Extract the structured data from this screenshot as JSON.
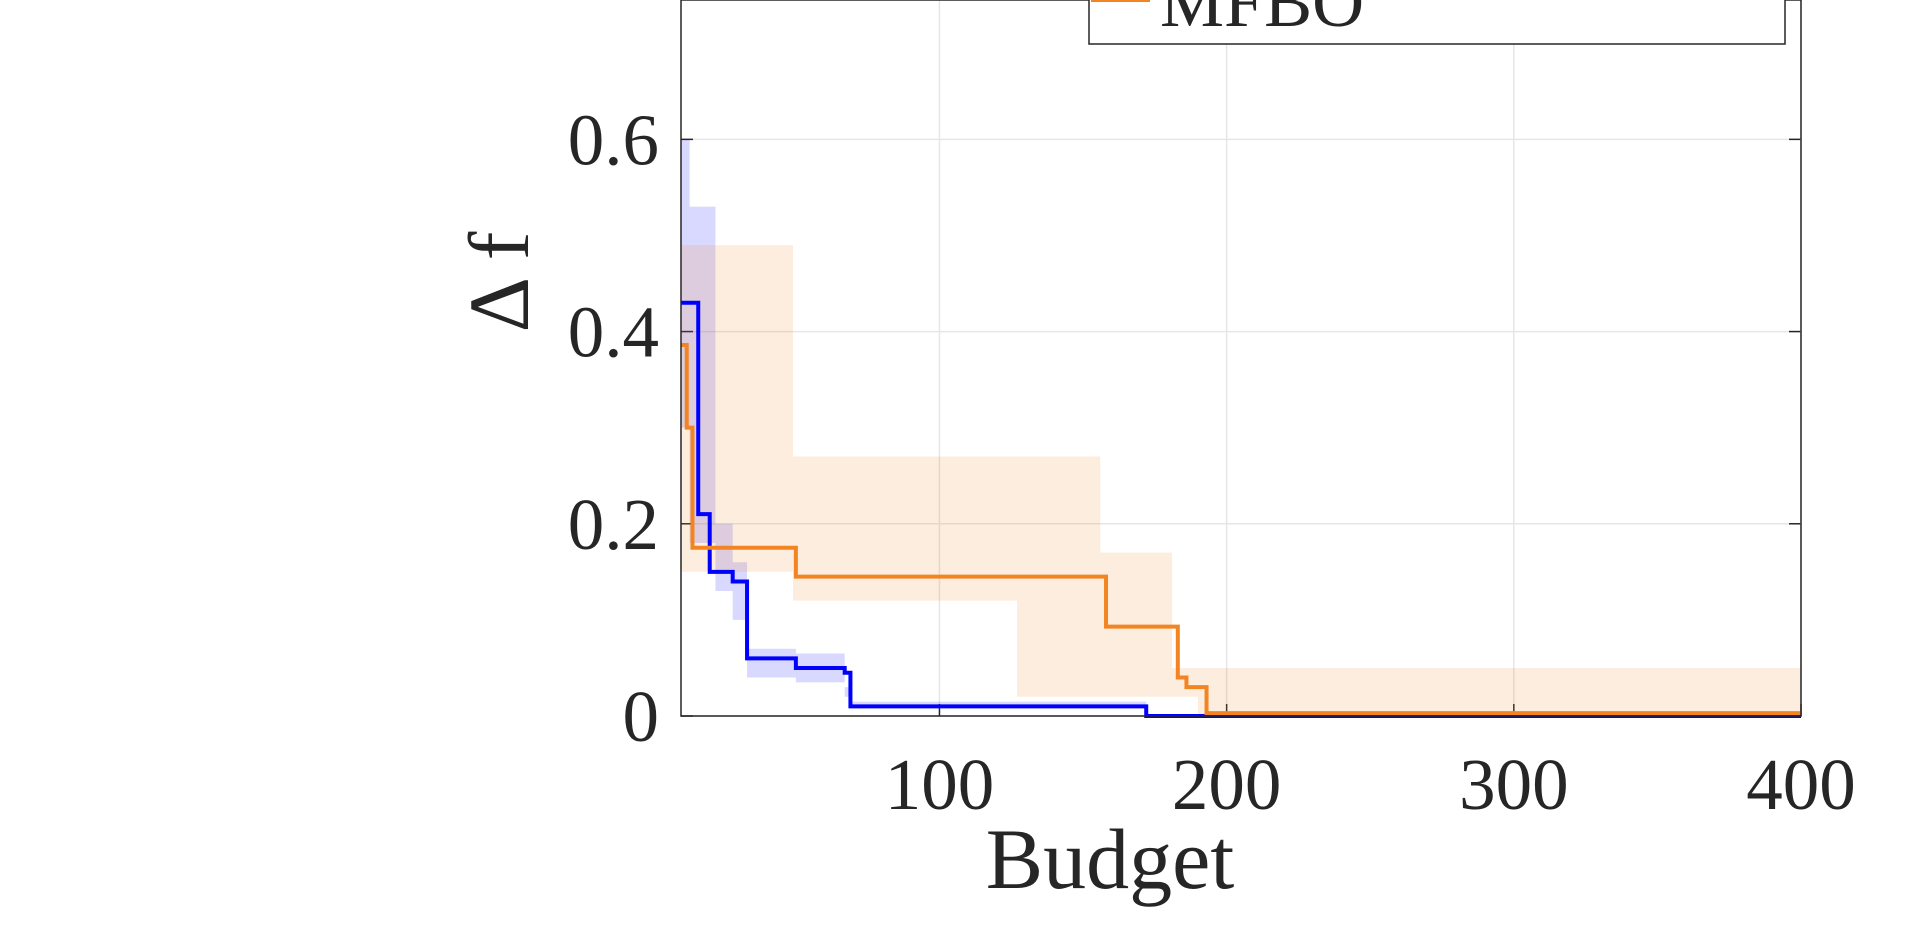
{
  "chart_data": {
    "type": "line",
    "x_label": "Budget",
    "y_label": "Δ f",
    "xlim": [
      10,
      400
    ],
    "ylim": [
      0,
      0.745
    ],
    "xticks": [
      100,
      200,
      300,
      400
    ],
    "yticks": [
      0,
      0.2,
      0.4,
      0.6
    ],
    "grid": true,
    "legend": "top",
    "series": [
      {
        "color": "#0000ff",
        "x": [
          10,
          16,
          20,
          28,
          33,
          50,
          67,
          69,
          172,
          400
        ],
        "values": [
          0.43,
          0.21,
          0.15,
          0.14,
          0.06,
          0.05,
          0.045,
          0.01,
          0,
          0
        ],
        "band_x": [
          10,
          13,
          22,
          28,
          33,
          50,
          67,
          69,
          172,
          400
        ],
        "band_upper": [
          0.6,
          0.53,
          0.2,
          0.16,
          0.07,
          0.065,
          0.03,
          0.015,
          0.002,
          0
        ],
        "band_lower": [
          0.3,
          0.18,
          0.13,
          0.1,
          0.04,
          0.035,
          0.02,
          0.008,
          0,
          0
        ]
      },
      {
        "name": "MFBO",
        "color": "#f28522",
        "x": [
          10,
          12,
          14,
          50,
          158,
          183,
          186,
          193,
          400
        ],
        "values": [
          0.386,
          0.3,
          0.175,
          0.145,
          0.093,
          0.04,
          0.03,
          0.003,
          0.003
        ],
        "band_x": [
          10,
          49,
          127,
          156,
          181,
          190,
          400
        ],
        "band_upper": [
          0.49,
          0.27,
          0.27,
          0.17,
          0.05,
          0.05,
          0.05
        ],
        "band_lower": [
          0.15,
          0.12,
          0.02,
          0.02,
          0.02,
          0,
          0
        ]
      }
    ]
  }
}
